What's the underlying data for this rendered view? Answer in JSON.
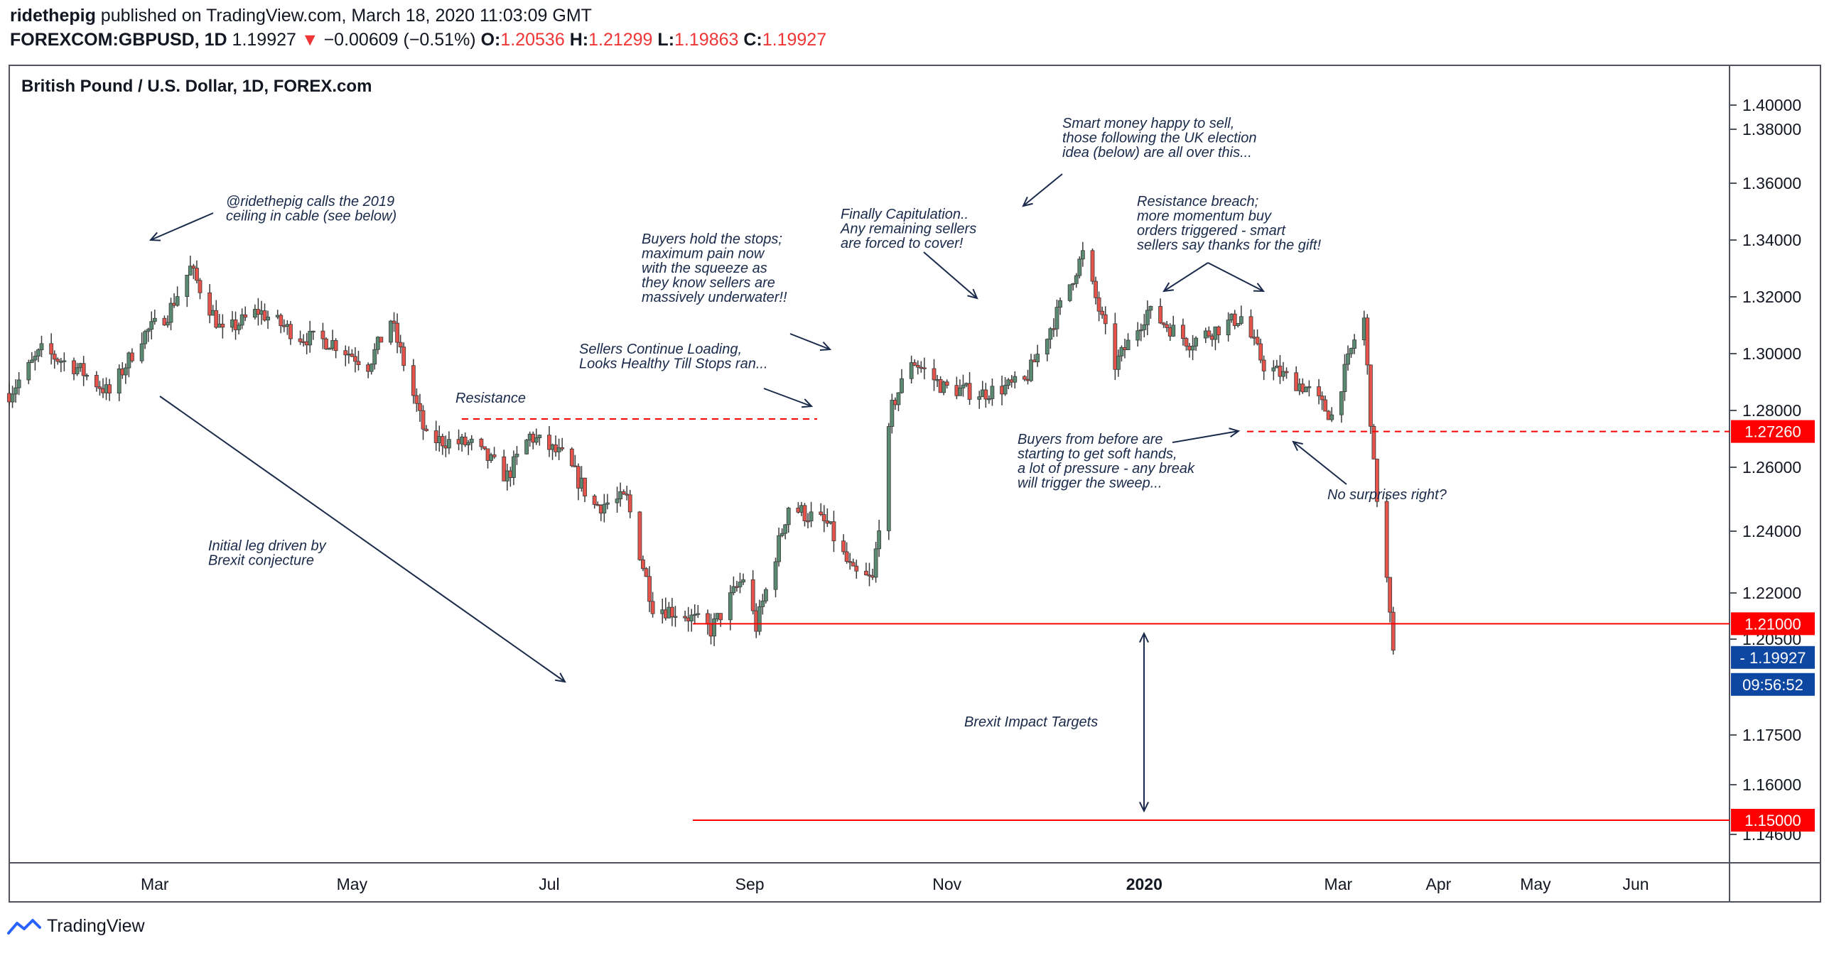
{
  "header": {
    "author": "ridethepig",
    "published_text": "published on TradingView.com, March 18, 2020 11:03:09 GMT",
    "symbol": "FOREXCOM:GBPUSD, 1D",
    "last_price": "1.19927",
    "change_arrow": "▼",
    "change_text": "−0.00609 (−0.51%)",
    "open_label": "O:",
    "open_value": "1.20536",
    "high_label": "H:",
    "high_value": "1.21299",
    "low_label": "L:",
    "low_value": "1.19863",
    "close_label": "C:",
    "close_value": "1.19927"
  },
  "footer": {
    "brand": "TradingView"
  },
  "colors": {
    "up": "#26a69a",
    "down": "#ef5350",
    "candle_body_up": "#5b8a72",
    "candle_body_down": "#e5534b",
    "annotation": "#1a2a4a",
    "level_line": "#ff0000",
    "current_price_tag": "#0d47a1"
  },
  "chart_data": {
    "type": "candlestick",
    "title": "British Pound / U.S. Dollar, 1D, FOREX.com",
    "ylim": [
      1.14,
      1.41
    ],
    "y_ticks": [
      "1.40000",
      "1.38000",
      "1.36000",
      "1.34000",
      "1.32000",
      "1.30000",
      "1.28000",
      "1.26000",
      "1.24000",
      "1.22000",
      "1.20500",
      "1.17500",
      "1.16000",
      "1.14600"
    ],
    "y_tick_values": [
      1.4,
      1.38,
      1.36,
      1.34,
      1.32,
      1.3,
      1.28,
      1.26,
      1.24,
      1.22,
      1.205,
      1.175,
      1.16,
      1.146
    ],
    "x_range": [
      "2019-01-15",
      "2020-06-30"
    ],
    "x_ticks": [
      {
        "label": "Mar",
        "date": "2019-03-01",
        "bold": false
      },
      {
        "label": "May",
        "date": "2019-05-01",
        "bold": false
      },
      {
        "label": "Jul",
        "date": "2019-07-01",
        "bold": false
      },
      {
        "label": "Sep",
        "date": "2019-09-01",
        "bold": false
      },
      {
        "label": "Nov",
        "date": "2019-11-01",
        "bold": false
      },
      {
        "label": "2020",
        "date": "2020-01-01",
        "bold": true
      },
      {
        "label": "Mar",
        "date": "2020-03-01",
        "bold": false
      },
      {
        "label": "Apr",
        "date": "2020-04-01",
        "bold": false
      },
      {
        "label": "May",
        "date": "2020-05-01",
        "bold": false
      },
      {
        "label": "Jun",
        "date": "2020-06-01",
        "bold": false
      }
    ],
    "close_series": [
      [
        "2019-01-15",
        1.286
      ],
      [
        "2019-01-25",
        1.301
      ],
      [
        "2019-02-05",
        1.295
      ],
      [
        "2019-02-15",
        1.286
      ],
      [
        "2019-02-25",
        1.306
      ],
      [
        "2019-03-05",
        1.314
      ],
      [
        "2019-03-12",
        1.33
      ],
      [
        "2019-03-22",
        1.307
      ],
      [
        "2019-04-02",
        1.315
      ],
      [
        "2019-04-15",
        1.306
      ],
      [
        "2019-04-25",
        1.304
      ],
      [
        "2019-05-06",
        1.296
      ],
      [
        "2019-05-13",
        1.312
      ],
      [
        "2019-05-24",
        1.27
      ],
      [
        "2019-06-07",
        1.268
      ],
      [
        "2019-06-18",
        1.257
      ],
      [
        "2019-06-25",
        1.271
      ],
      [
        "2019-07-05",
        1.264
      ],
      [
        "2019-07-15",
        1.248
      ],
      [
        "2019-07-25",
        1.25
      ],
      [
        "2019-08-02",
        1.216
      ],
      [
        "2019-08-12",
        1.213
      ],
      [
        "2019-08-20",
        1.208
      ],
      [
        "2019-08-30",
        1.225
      ],
      [
        "2019-09-03",
        1.209
      ],
      [
        "2019-09-13",
        1.248
      ],
      [
        "2019-09-25",
        1.242
      ],
      [
        "2019-10-03",
        1.226
      ],
      [
        "2019-10-09",
        1.224
      ],
      [
        "2019-10-15",
        1.281
      ],
      [
        "2019-10-21",
        1.298
      ],
      [
        "2019-10-31",
        1.288
      ],
      [
        "2019-11-12",
        1.286
      ],
      [
        "2019-11-25",
        1.29
      ],
      [
        "2019-12-05",
        1.314
      ],
      [
        "2019-12-13",
        1.335
      ],
      [
        "2019-12-23",
        1.296
      ],
      [
        "2020-01-02",
        1.315
      ],
      [
        "2020-01-15",
        1.304
      ],
      [
        "2020-01-31",
        1.313
      ],
      [
        "2020-02-07",
        1.296
      ],
      [
        "2020-02-20",
        1.288
      ],
      [
        "2020-02-28",
        1.278
      ],
      [
        "2020-03-06",
        1.305
      ],
      [
        "2020-03-09",
        1.312
      ],
      [
        "2020-03-12",
        1.26
      ],
      [
        "2020-03-16",
        1.224
      ],
      [
        "2020-03-18",
        1.1993
      ]
    ]
  },
  "current_time": "09:56:52",
  "price_tags": [
    {
      "label": "1.27260",
      "value": 1.2726,
      "color": "#ff0000",
      "style": "dashed"
    },
    {
      "label": "1.21000",
      "value": 1.21,
      "color": "#ff0000",
      "style": "solid"
    },
    {
      "label": "1.19927",
      "value": 1.19927,
      "color": "#0d47a1",
      "style": "none"
    },
    {
      "label": "1.15000",
      "value": 1.15,
      "color": "#ff0000",
      "style": "solid"
    }
  ],
  "annotations": [
    {
      "lines": [
        "@ridethepig calls the 2019",
        "ceiling in cable (see below)"
      ]
    },
    {
      "lines": [
        "Initial leg driven by",
        "Brexit conjecture"
      ]
    },
    {
      "lines": [
        "Resistance"
      ]
    },
    {
      "lines": [
        "Sellers Continue Loading,",
        "Looks Healthy Till Stops ran..."
      ]
    },
    {
      "lines": [
        "Buyers hold the stops;",
        "maximum pain now",
        "with the squeeze as",
        "they know sellers are",
        "massively underwater!!"
      ]
    },
    {
      "lines": [
        "Finally Capitulation..",
        "Any remaining sellers",
        "are forced to cover!"
      ]
    },
    {
      "lines": [
        "Smart money happy to sell,",
        "those following the UK election",
        "idea (below) are all over this..."
      ]
    },
    {
      "lines": [
        "Resistance breach;",
        "more momentum buy",
        "orders triggered - smart",
        "sellers say thanks for the gift!"
      ]
    },
    {
      "lines": [
        "Buyers from before are",
        "starting to get soft hands,",
        "a lot of pressure - any break",
        "will trigger the sweep..."
      ]
    },
    {
      "lines": [
        "No surprises right?"
      ]
    },
    {
      "lines": [
        "Brexit Impact Targets"
      ]
    }
  ]
}
